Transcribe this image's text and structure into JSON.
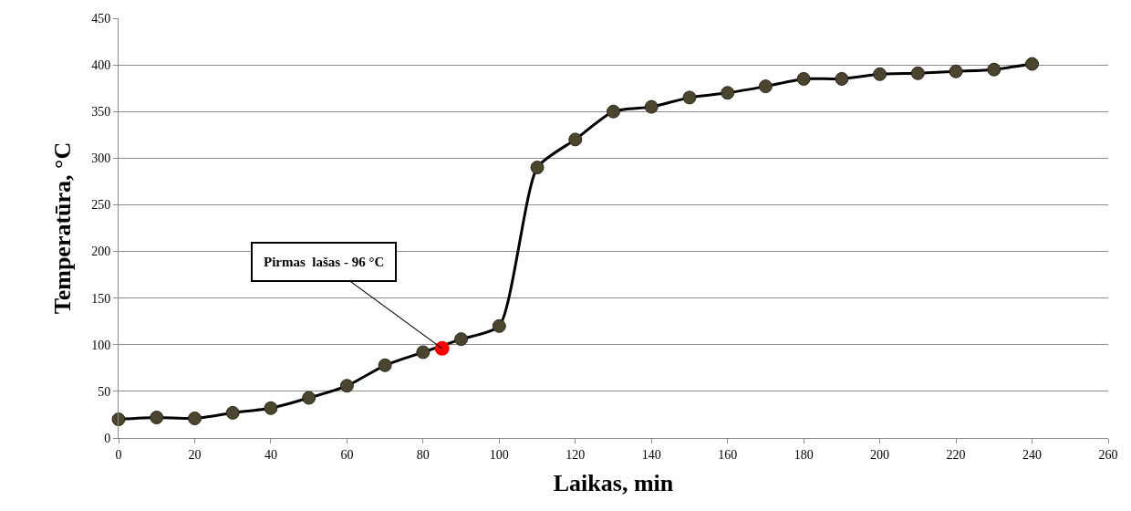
{
  "chart_data": {
    "type": "line",
    "xlabel": "Laikas, min",
    "ylabel": "Temperatūra, °C",
    "xlim": [
      0,
      260
    ],
    "xticks": [
      0,
      20,
      40,
      60,
      80,
      100,
      120,
      140,
      160,
      180,
      200,
      220,
      240,
      260
    ],
    "ylim": [
      0,
      450
    ],
    "yticks": [
      0,
      50,
      100,
      150,
      200,
      250,
      300,
      350,
      400,
      450
    ],
    "grid": "y",
    "legend": false,
    "marker": "circle",
    "line_style": "solid",
    "series": [
      {
        "color": "#4b4530",
        "x": [
          0,
          10,
          20,
          30,
          40,
          50,
          60,
          70,
          80,
          90,
          100,
          110,
          120,
          130,
          140,
          150,
          160,
          170,
          180,
          190,
          200,
          210,
          220,
          230,
          240
        ],
        "values": [
          20,
          22,
          21,
          27,
          32,
          43,
          56,
          78,
          92,
          106,
          120,
          290,
          320,
          350,
          355,
          365,
          370,
          377,
          385,
          385,
          390,
          391,
          393,
          395,
          401
        ]
      },
      {
        "type": "scatter",
        "color": "#ff0000",
        "x": [
          85
        ],
        "values": [
          96
        ]
      }
    ],
    "annotations": [
      {
        "text": "Pirmas  lašas - 96 °C",
        "x": 85,
        "y": 96
      }
    ]
  }
}
